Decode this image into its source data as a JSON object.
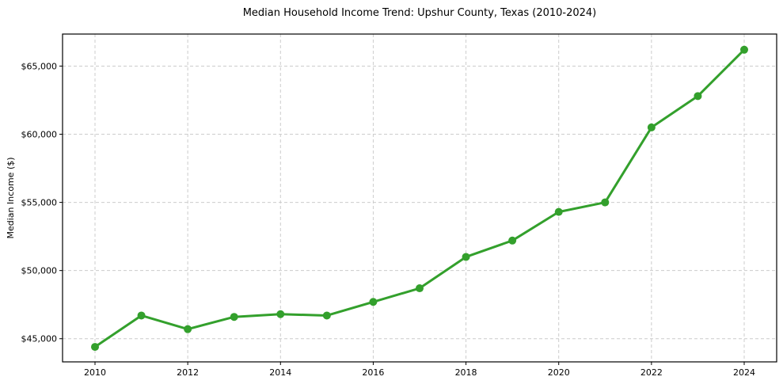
{
  "chart_data": {
    "type": "line",
    "title": "Median Household Income Trend: Upshur County, Texas (2010-2024)",
    "ylabel": "Median Income ($)",
    "x": [
      2010,
      2011,
      2012,
      2013,
      2014,
      2015,
      2016,
      2017,
      2018,
      2019,
      2020,
      2021,
      2022,
      2023,
      2024
    ],
    "values": [
      44400,
      46700,
      45700,
      46600,
      46800,
      46700,
      47700,
      48700,
      51000,
      52200,
      54300,
      55000,
      60500,
      62800,
      66200
    ],
    "x_ticks": [
      2010,
      2012,
      2014,
      2016,
      2018,
      2020,
      2022,
      2024
    ],
    "x_tick_labels": [
      "2010",
      "2012",
      "2014",
      "2016",
      "2018",
      "2020",
      "2022",
      "2024"
    ],
    "y_ticks": [
      45000,
      50000,
      55000,
      60000,
      65000
    ],
    "y_tick_labels": [
      "$45,000",
      "$50,000",
      "$55,000",
      "$60,000",
      "$65,000"
    ],
    "xlim": [
      2009.3,
      2024.7
    ],
    "ylim": [
      43300,
      67350
    ],
    "grid": true,
    "grid_style": "dashed",
    "legend_position": "none",
    "line_color": "#33a02c",
    "marker": "circle",
    "marker_color": "#33a02c",
    "grid_color": "#cccccc",
    "axis_color": "#000000",
    "background_color": "#ffffff"
  }
}
